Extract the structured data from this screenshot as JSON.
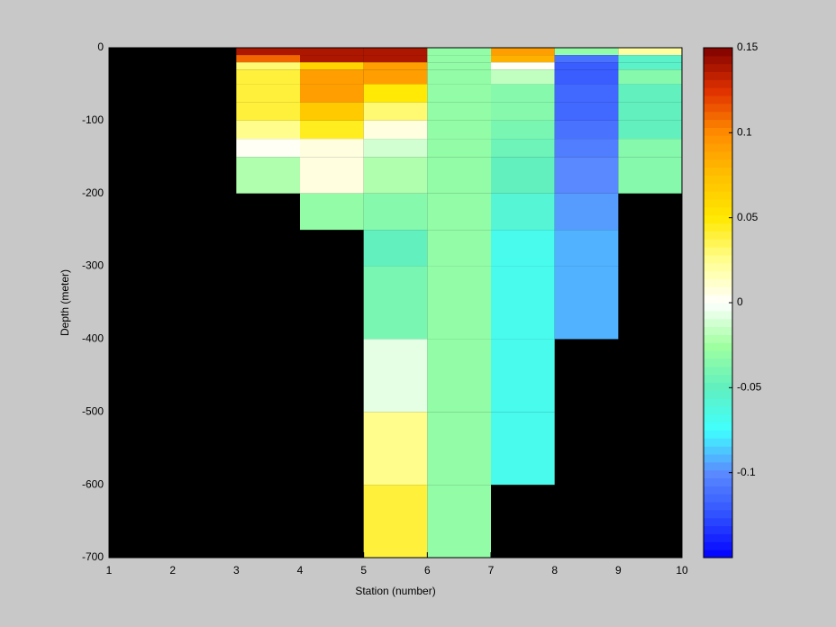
{
  "chart_data": {
    "type": "heatmap",
    "xlabel": "Station (number)",
    "ylabel": "Depth (meter)",
    "xlim": [
      1,
      10
    ],
    "xticks": [
      1,
      2,
      3,
      4,
      5,
      6,
      7,
      8,
      9,
      10
    ],
    "ylim": [
      -700,
      0
    ],
    "yticks": [
      0,
      -100,
      -200,
      -300,
      -400,
      -500,
      -600,
      -700
    ],
    "x_edges": [
      3,
      4,
      5,
      6,
      7,
      8,
      9,
      10
    ],
    "y_edges": [
      0,
      -10,
      -20,
      -30,
      -50,
      -75,
      -100,
      -125,
      -150,
      -200,
      -250,
      -300,
      -400,
      -500,
      -600,
      -700
    ],
    "values": [
      [
        0.14,
        0.14,
        0.14,
        -0.03,
        0.09,
        -0.03,
        0.02
      ],
      [
        0.11,
        0.14,
        0.14,
        -0.03,
        0.08,
        -0.11,
        -0.055
      ],
      [
        0.03,
        0.065,
        0.09,
        -0.03,
        0.0,
        -0.12,
        -0.055
      ],
      [
        0.04,
        0.09,
        0.09,
        -0.03,
        -0.015,
        -0.12,
        -0.035
      ],
      [
        0.04,
        0.09,
        0.05,
        -0.03,
        -0.035,
        -0.115,
        -0.05
      ],
      [
        0.04,
        0.07,
        0.03,
        -0.03,
        -0.035,
        -0.115,
        -0.05
      ],
      [
        0.025,
        0.045,
        0.005,
        -0.03,
        -0.04,
        -0.11,
        -0.05
      ],
      [
        0.0,
        0.005,
        -0.01,
        -0.03,
        -0.045,
        -0.105,
        -0.035
      ],
      [
        -0.02,
        0.005,
        -0.02,
        -0.03,
        -0.05,
        -0.1,
        -0.035
      ],
      [
        null,
        -0.03,
        -0.035,
        -0.03,
        -0.06,
        -0.095,
        null
      ],
      [
        null,
        null,
        -0.05,
        -0.03,
        -0.07,
        -0.09,
        null
      ],
      [
        null,
        null,
        -0.04,
        -0.03,
        -0.07,
        -0.09,
        null
      ],
      [
        null,
        null,
        -0.005,
        -0.03,
        -0.07,
        null,
        null
      ],
      [
        null,
        null,
        0.025,
        -0.03,
        -0.07,
        null,
        null
      ],
      [
        null,
        null,
        0.04,
        -0.03,
        null,
        null,
        null
      ]
    ],
    "clim": [
      -0.15,
      0.15
    ],
    "cticks": [
      0.15,
      0.1,
      0.05,
      0,
      -0.05,
      -0.1
    ],
    "colormap": [
      "#0000ff",
      "#3050ff",
      "#5a8aff",
      "#40ffff",
      "#60f0c0",
      "#a0ffa0",
      "#ffffff",
      "#ffff90",
      "#ffe800",
      "#ffc000",
      "#ff8c00",
      "#e03000",
      "#800000"
    ],
    "background": "#000000"
  }
}
